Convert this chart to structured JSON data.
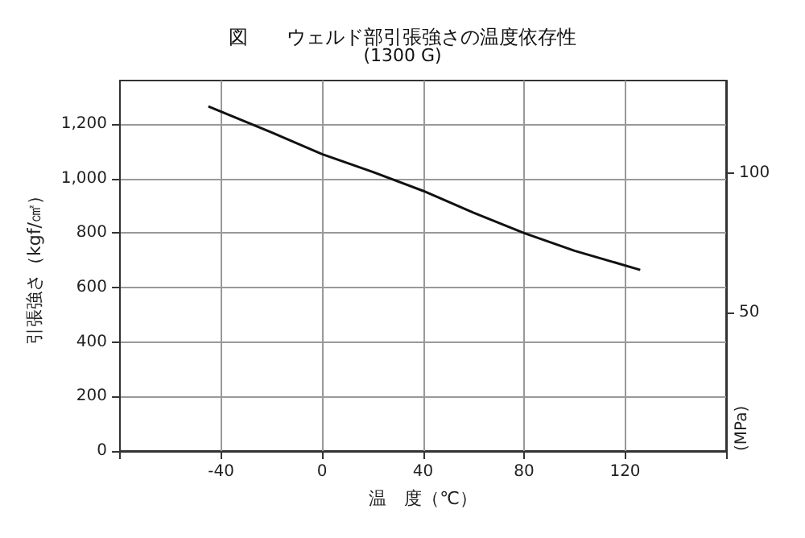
{
  "chart_data": {
    "type": "line",
    "title": "図　　ウェルド部引張強さの温度依存性",
    "subtitle": "(1300 G)",
    "xlabel": "温　度（℃）",
    "ylabel": "引張強さ（kgf/㎠）",
    "y2label": "(MPa)",
    "x": [
      -45,
      -20,
      0,
      20,
      40,
      60,
      80,
      100,
      126
    ],
    "series": [
      {
        "color": "#111111",
        "values": [
          1265,
          1170,
          1090,
          1025,
          955,
          875,
          800,
          735,
          665
        ]
      }
    ],
    "xlim": [
      -80,
      160
    ],
    "xticks": [
      {
        "value": -80,
        "label": null
      },
      -40,
      0,
      40,
      80,
      120,
      {
        "value": 160,
        "label": null
      }
    ],
    "ylim": [
      0,
      1360
    ],
    "yticks": [
      0,
      200,
      400,
      600,
      800,
      {
        "value": 1000,
        "label": "1,000"
      },
      {
        "value": 1200,
        "label": "1,200"
      }
    ],
    "y2lim": [
      0,
      133.4
    ],
    "y2ticks": [
      50,
      100
    ],
    "grid": true,
    "marker": "none",
    "line_style": "solid"
  }
}
